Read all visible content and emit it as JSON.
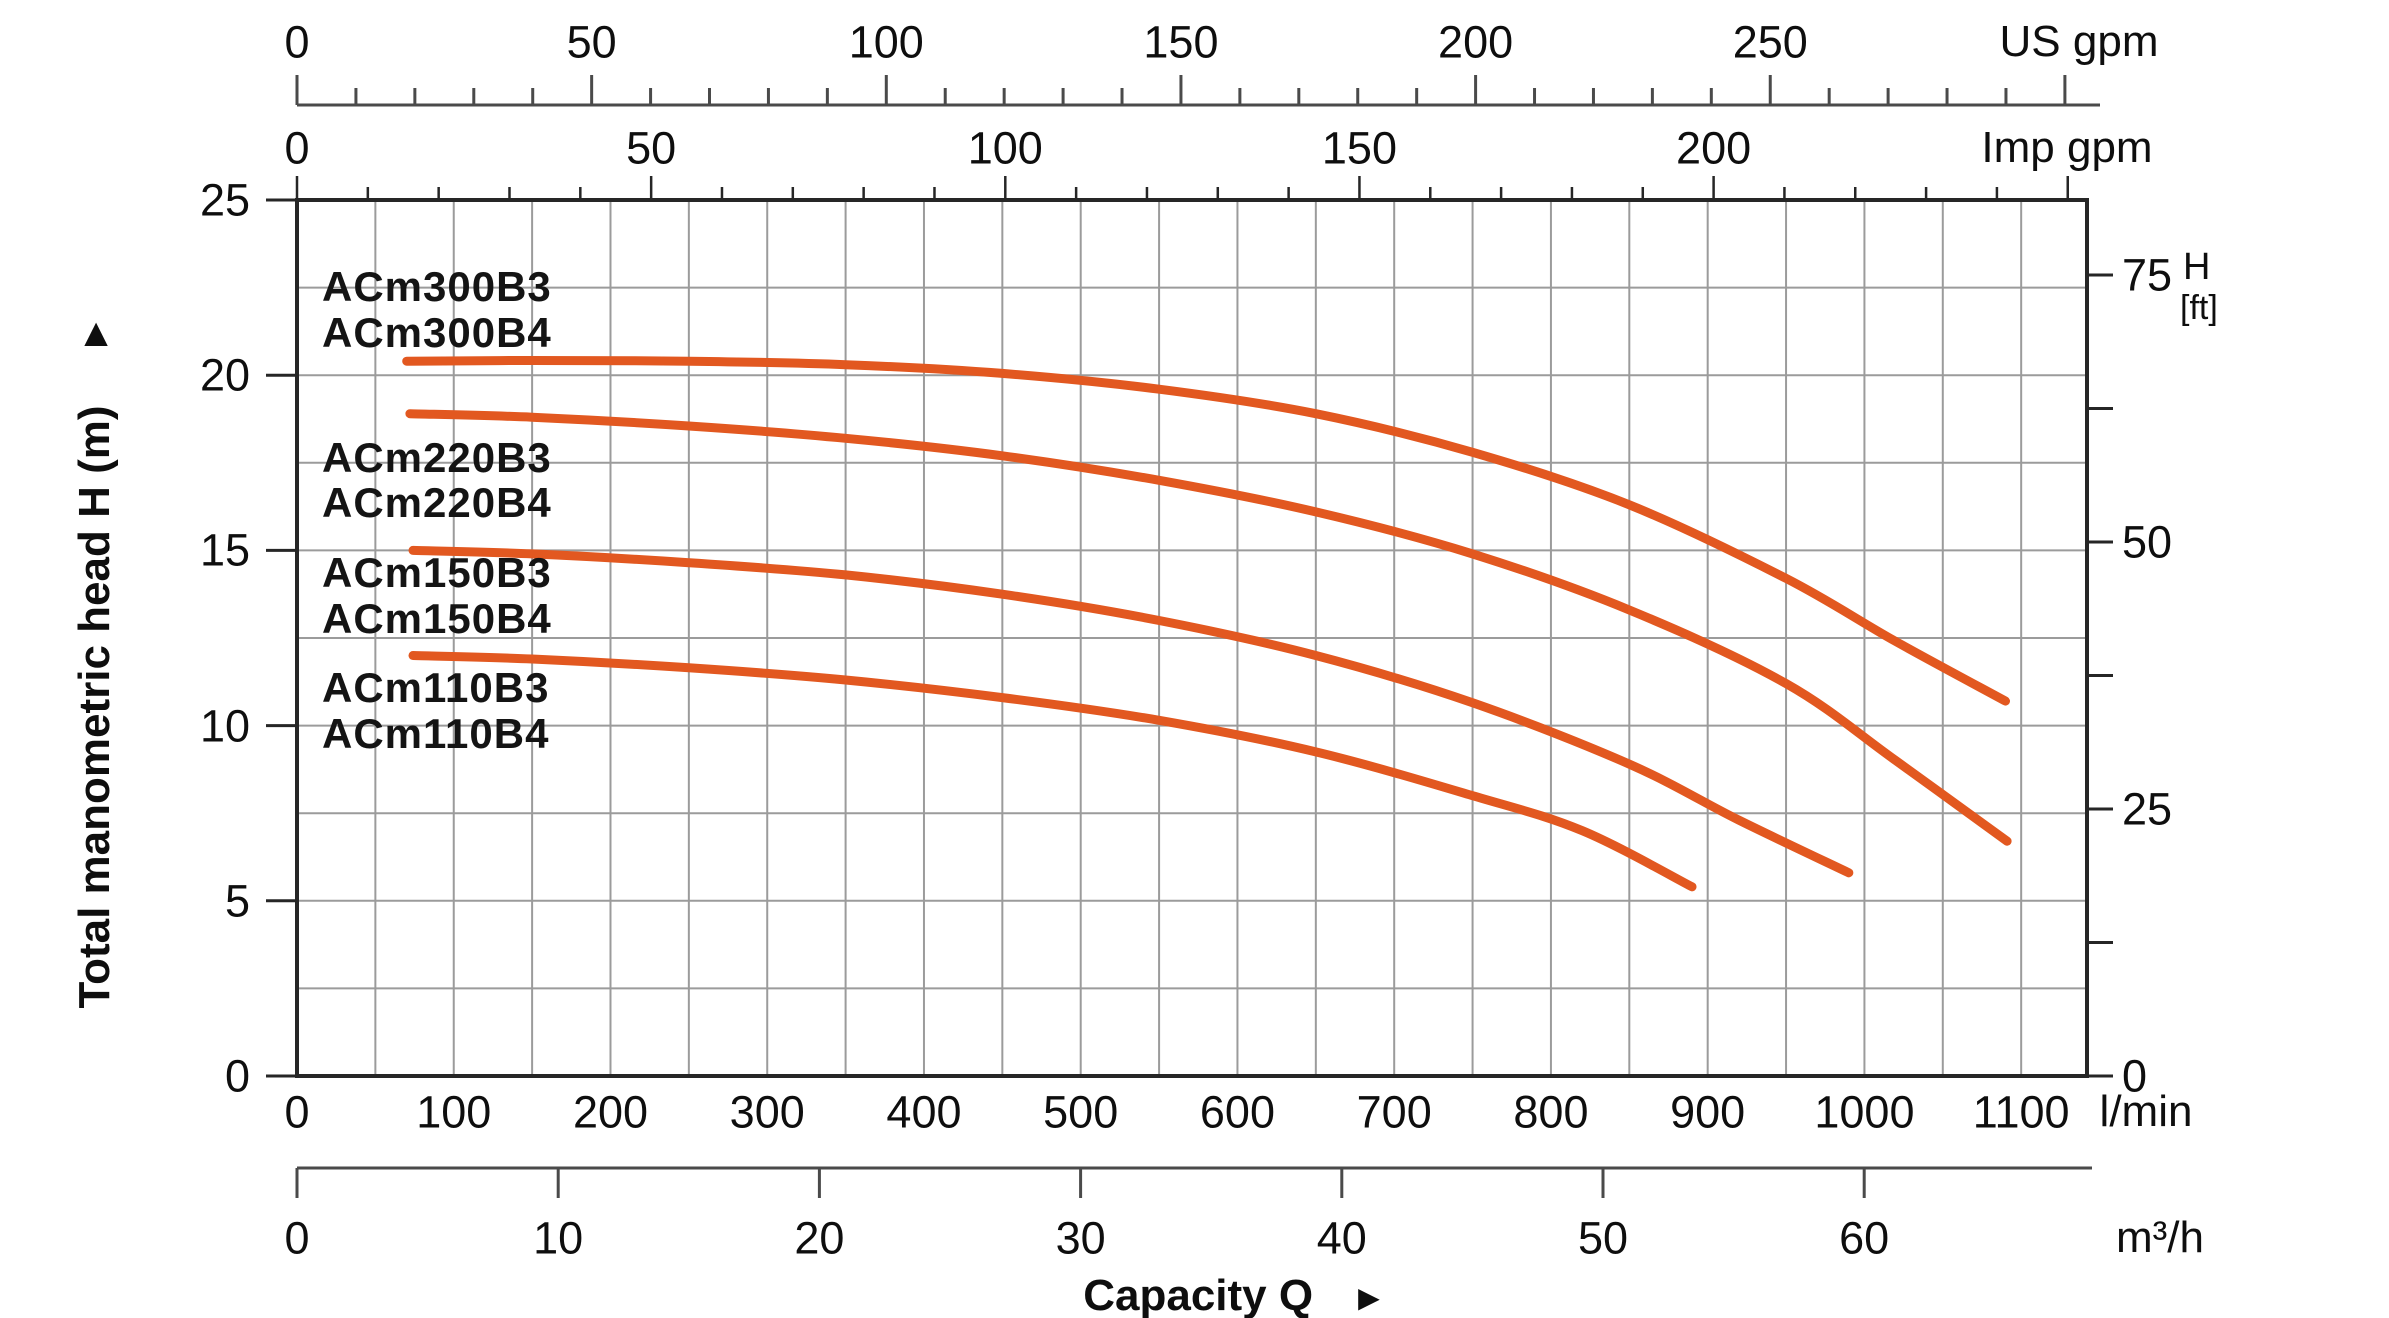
{
  "page": {
    "background": "#ffffff"
  },
  "labels": {
    "models": [
      "ACm300B3",
      "ACm300B4",
      "ACm220B3",
      "ACm220B4",
      "ACm150B3",
      "ACm150B4",
      "ACm110B3",
      "ACm110B4"
    ]
  },
  "chart_data": {
    "type": "line",
    "title": "",
    "xlabel": "Capacity Q",
    "xlabel_arrow": "►",
    "ylabel": "Total manometric head H (m)",
    "ylabel_arrow": "▲",
    "grid": true,
    "curve_color": "#E25820",
    "grid_color": "#9b9b9b",
    "axis_color": "#262626",
    "ruler_color": "#4a4a4a",
    "axes": {
      "top_us_gpm": {
        "unit": "US gpm",
        "tick_labels": [
          0,
          50,
          100,
          150,
          200,
          250
        ],
        "minor_step": 10,
        "max_tick": 300
      },
      "top_imp_gpm": {
        "unit": "Imp gpm",
        "tick_labels": [
          0,
          50,
          100,
          150,
          200
        ],
        "minor_step": 10,
        "max_tick": 250
      },
      "left_head_m": {
        "tick_labels": [
          0,
          5,
          10,
          15,
          20,
          25
        ],
        "grid_step": 2.5,
        "range": [
          0,
          25
        ]
      },
      "right_head_ft": {
        "unit_line1": "H",
        "unit_line2": "[ft]",
        "tick_labels": [
          0,
          25,
          50,
          75
        ],
        "tick_step": 12.5
      },
      "bottom_l_min": {
        "unit": "l/min",
        "tick_labels": [
          0,
          100,
          200,
          300,
          400,
          500,
          600,
          700,
          800,
          900,
          1000,
          1100
        ],
        "grid_step": 50,
        "range": [
          0,
          1142
        ]
      },
      "bottom_m3_h": {
        "unit": "m³/h",
        "tick_labels": [
          0,
          10,
          20,
          30,
          40,
          50,
          60
        ],
        "tick_step": 10
      }
    },
    "series": [
      {
        "name": "ACm300B3 / ACm300B4",
        "points": [
          [
            70,
            20.4
          ],
          [
            150,
            20.42
          ],
          [
            250,
            20.4
          ],
          [
            350,
            20.3
          ],
          [
            450,
            20.05
          ],
          [
            550,
            19.6
          ],
          [
            650,
            18.9
          ],
          [
            750,
            17.8
          ],
          [
            850,
            16.3
          ],
          [
            950,
            14.2
          ],
          [
            1020,
            12.4
          ],
          [
            1090,
            10.7
          ]
        ]
      },
      {
        "name": "ACm220B3 / ACm220B4",
        "points": [
          [
            72,
            18.9
          ],
          [
            150,
            18.8
          ],
          [
            250,
            18.55
          ],
          [
            350,
            18.2
          ],
          [
            450,
            17.7
          ],
          [
            550,
            17.0
          ],
          [
            650,
            16.1
          ],
          [
            750,
            14.9
          ],
          [
            850,
            13.3
          ],
          [
            950,
            11.2
          ],
          [
            1020,
            9.0
          ],
          [
            1091,
            6.7
          ]
        ]
      },
      {
        "name": "ACm150B3 / ACm150B4",
        "points": [
          [
            74,
            15.0
          ],
          [
            150,
            14.9
          ],
          [
            250,
            14.65
          ],
          [
            350,
            14.3
          ],
          [
            450,
            13.75
          ],
          [
            550,
            13.0
          ],
          [
            650,
            12.0
          ],
          [
            750,
            10.65
          ],
          [
            850,
            8.9
          ],
          [
            920,
            7.3
          ],
          [
            990,
            5.8
          ]
        ]
      },
      {
        "name": "ACm110B3 / ACm110B4",
        "points": [
          [
            74,
            12.0
          ],
          [
            150,
            11.9
          ],
          [
            250,
            11.65
          ],
          [
            350,
            11.3
          ],
          [
            450,
            10.8
          ],
          [
            550,
            10.15
          ],
          [
            650,
            9.25
          ],
          [
            750,
            8.0
          ],
          [
            820,
            7.0
          ],
          [
            890,
            5.4
          ]
        ]
      }
    ]
  }
}
